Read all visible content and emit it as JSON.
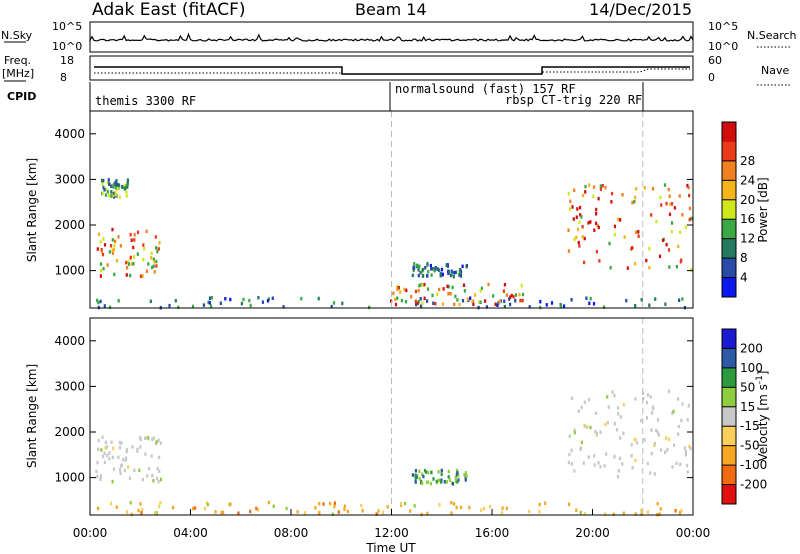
{
  "header": {
    "site": "Adak East (fitACF)",
    "beam": "Beam 14",
    "date": "14/Dec/2015"
  },
  "summary": {
    "nsky_label": "N.Sky",
    "nsky_ticks": [
      "10^5",
      "10^0"
    ],
    "nsearch_label": "N.Search",
    "nsearch_ticks": [
      "10^5",
      "10^0"
    ],
    "freq_label": [
      "Freq.",
      "[MHz]"
    ],
    "freq_ticks": [
      "18",
      "8"
    ],
    "nave_label": "Nave",
    "nave_ticks": [
      "60",
      "0"
    ],
    "cpid_label": "CPID",
    "programs": [
      "themis 3300 RF",
      "normalsound (fast) 157 RF",
      "rbsp CT-trig 220 RF"
    ]
  },
  "time_axis": {
    "label": "Time UT",
    "ticks": [
      "00:00",
      "04:00",
      "08:00",
      "12:00",
      "16:00",
      "20:00",
      "00:00"
    ]
  },
  "colors": {
    "power": [
      "#0a1aee",
      "#2a4aa8",
      "#237a5e",
      "#3aa844",
      "#cfe81e",
      "#f5b41a",
      "#f08020",
      "#ea3a1a",
      "#d10e0e"
    ],
    "velocity": [
      "#e01010",
      "#f06a10",
      "#f5a623",
      "#f7cf5a",
      "#c8c8c8",
      "#8ecc40",
      "#2e9a3e",
      "#2c5aa6",
      "#1a1ad0"
    ],
    "guide": "#bbbbbb"
  },
  "chart_data": [
    {
      "type": "heatmap",
      "title": "",
      "xlabel": "Time UT",
      "ylabel": "Slant Range [km]",
      "xlim": [
        0,
        24
      ],
      "ylim": [
        180,
        4500
      ],
      "yticks": [
        "1000",
        "2000",
        "3000",
        "4000"
      ],
      "colorbar": {
        "label": "Power [dB]",
        "ticks": [
          "4",
          "8",
          "12",
          "16",
          "20",
          "24",
          "28"
        ],
        "range": [
          0,
          32
        ]
      },
      "regions": [
        {
          "t0": 0.2,
          "t1": 2.8,
          "r0": 850,
          "r1": 1900,
          "level": "high"
        },
        {
          "t0": 0.4,
          "t1": 1.5,
          "r0": 2600,
          "r1": 3000,
          "level": "medium"
        },
        {
          "t0": 0.2,
          "t1": 24,
          "r0": 180,
          "r1": 400,
          "level": "low"
        },
        {
          "t0": 11.5,
          "t1": 17.5,
          "r0": 250,
          "r1": 700,
          "level": "high"
        },
        {
          "t0": 12.8,
          "t1": 15.0,
          "r0": 850,
          "r1": 1150,
          "level": "low"
        },
        {
          "t0": 19.0,
          "t1": 24,
          "r0": 1000,
          "r1": 2900,
          "level": "high"
        }
      ]
    },
    {
      "type": "heatmap",
      "title": "",
      "xlabel": "Time UT",
      "ylabel": "Slant Range [km]",
      "xlim": [
        0,
        24
      ],
      "ylim": [
        180,
        4500
      ],
      "yticks": [
        "1000",
        "2000",
        "3000",
        "4000"
      ],
      "colorbar": {
        "label": "Velocity [m s^-1]",
        "ticks": [
          "-200",
          "-100",
          "-50",
          "-15",
          "15",
          "50",
          "100",
          "200"
        ]
      },
      "regions": [
        {
          "t0": 0.2,
          "t1": 2.8,
          "r0": 900,
          "r1": 1900,
          "level": "near-zero"
        },
        {
          "t0": 0.2,
          "t1": 24,
          "r0": 180,
          "r1": 450,
          "level": "negative"
        },
        {
          "t0": 12.8,
          "t1": 15.0,
          "r0": 850,
          "r1": 1150,
          "level": "positive"
        },
        {
          "t0": 19.0,
          "t1": 24,
          "r0": 1000,
          "r1": 2900,
          "level": "near-zero"
        }
      ]
    }
  ]
}
